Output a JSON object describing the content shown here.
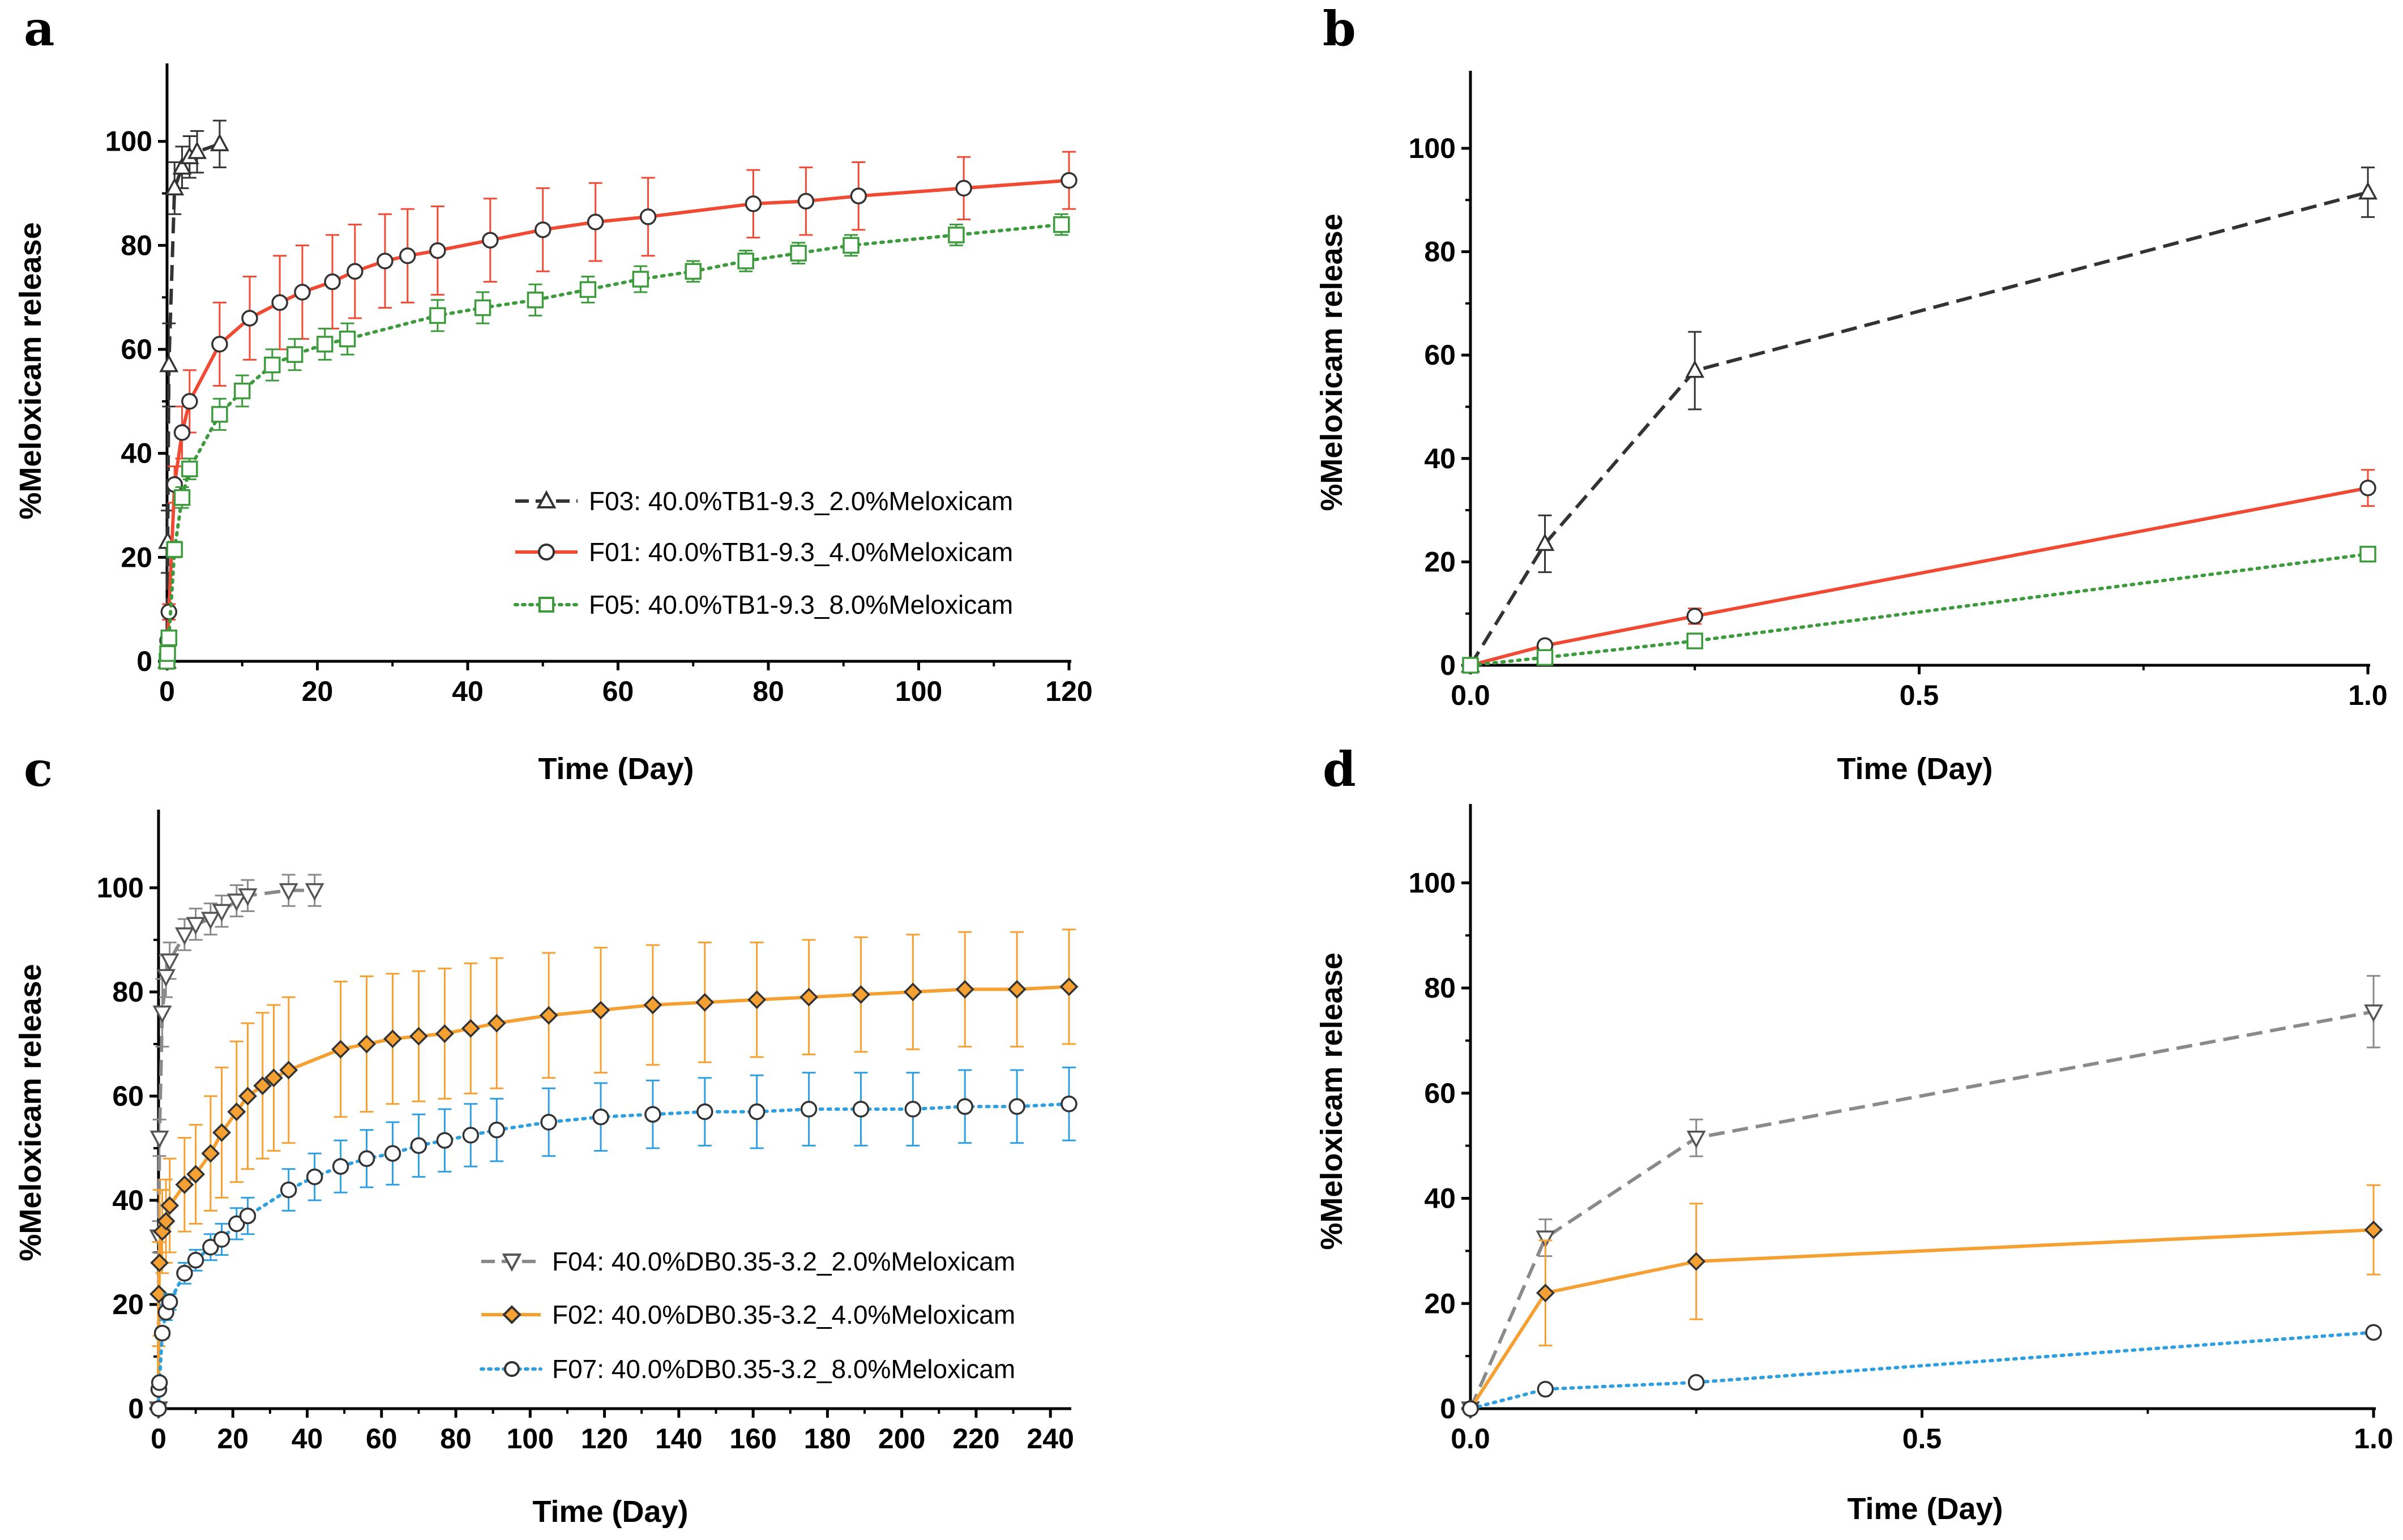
{
  "chart_data": [
    {
      "panel": "a",
      "type": "line",
      "xlabel": "Time (Day)",
      "ylabel": "%Meloxicam release",
      "xlim": [
        0,
        120
      ],
      "ylim": [
        0,
        115
      ],
      "xticks": [
        0,
        20,
        40,
        60,
        80,
        100,
        120
      ],
      "yticks": [
        0,
        20,
        40,
        60,
        80,
        100
      ],
      "grid": false,
      "legend_position": "lower-right",
      "series": [
        {
          "name": "F03: 40.0%TB1-9.3_2.0%Meloxicam",
          "color": "#333333",
          "dash": "dashed",
          "marker": "triangle-up",
          "x": [
            0,
            0.08,
            0.25,
            1,
            2,
            3,
            4,
            7
          ],
          "y": [
            0,
            23,
            57,
            91,
            95,
            97,
            98,
            99.5
          ],
          "err": [
            0,
            6,
            8,
            5,
            4,
            4,
            4,
            4.5
          ]
        },
        {
          "name": "F01: 40.0%TB1-9.3_4.0%Meloxicam",
          "color": "#f04a35",
          "dash": "solid",
          "marker": "circle",
          "x": [
            0,
            0.08,
            0.25,
            1,
            2,
            3,
            7,
            11,
            15,
            18,
            22,
            25,
            29,
            32,
            36,
            43,
            50,
            57,
            64,
            78,
            85,
            92,
            106,
            120
          ],
          "y": [
            0,
            4,
            9.5,
            34,
            44,
            50,
            61,
            66,
            69,
            71,
            73,
            75,
            77,
            78,
            79,
            81,
            83,
            84.5,
            85.5,
            88,
            88.5,
            89.5,
            91,
            92.5
          ],
          "err": [
            0,
            1,
            1.5,
            3.5,
            5,
            6,
            8,
            8,
            9,
            9,
            9,
            9,
            9,
            9,
            8.5,
            8,
            8,
            7.5,
            7.5,
            6.5,
            6.5,
            6.5,
            6,
            5.5
          ]
        },
        {
          "name": "F05: 40.0%TB1-9.3_8.0%Meloxicam",
          "color": "#3d9a3d",
          "dash": "dotted",
          "marker": "square",
          "x": [
            0,
            0.08,
            0.25,
            1,
            2,
            3,
            7,
            10,
            14,
            17,
            21,
            24,
            36,
            42,
            49,
            56,
            63,
            70,
            77,
            84,
            91,
            105,
            119
          ],
          "y": [
            0,
            1.5,
            4.5,
            21.5,
            31.5,
            37,
            47.5,
            52,
            57,
            59,
            61,
            62,
            66.5,
            68,
            69.5,
            71.5,
            73.5,
            75,
            77,
            78.5,
            80,
            82,
            84
          ],
          "err": [
            0,
            0.5,
            1,
            1.5,
            2,
            2,
            3,
            3,
            3,
            3,
            3,
            3,
            3,
            3,
            3,
            2.5,
            2.5,
            2,
            2,
            2,
            2,
            2,
            2
          ]
        }
      ]
    },
    {
      "panel": "b",
      "type": "line",
      "xlabel": "Time (Day)",
      "ylabel": "%Meloxicam release",
      "xlim": [
        0,
        1
      ],
      "ylim": [
        0,
        115
      ],
      "xticks": [
        0.0,
        0.5,
        1.0
      ],
      "xtick_labels": [
        "0.0",
        "0.5",
        "1.0"
      ],
      "yticks": [
        0,
        20,
        40,
        60,
        80,
        100
      ],
      "grid": false,
      "series": [
        {
          "name": "F03",
          "color": "#333333",
          "dash": "dashed",
          "marker": "triangle-up",
          "x": [
            0,
            0.083,
            0.25,
            1
          ],
          "y": [
            0,
            23.5,
            57,
            91.5
          ],
          "err": [
            0,
            5.5,
            7.5,
            4.8
          ]
        },
        {
          "name": "F01",
          "color": "#f04a35",
          "dash": "solid",
          "marker": "circle",
          "x": [
            0,
            0.083,
            0.25,
            1
          ],
          "y": [
            0,
            3.8,
            9.5,
            34.3
          ],
          "err": [
            0,
            0.6,
            1.5,
            3.5
          ]
        },
        {
          "name": "F05",
          "color": "#3d9a3d",
          "dash": "dotted",
          "marker": "square",
          "x": [
            0,
            0.083,
            0.25,
            1
          ],
          "y": [
            0,
            1.5,
            4.7,
            21.5
          ],
          "err": [
            0,
            0.3,
            0.6,
            0.8
          ]
        }
      ]
    },
    {
      "panel": "c",
      "type": "line",
      "xlabel": "Time (Day)",
      "ylabel": "%Meloxicam release",
      "xlim": [
        0,
        245
      ],
      "ylim": [
        0,
        115
      ],
      "xticks": [
        0,
        20,
        40,
        60,
        80,
        100,
        120,
        140,
        160,
        180,
        200,
        220,
        240
      ],
      "yticks": [
        0,
        20,
        40,
        60,
        80,
        100
      ],
      "grid": false,
      "legend_position": "lower-right",
      "series": [
        {
          "name": "F04: 40.0%DB0.35-3.2_2.0%Meloxicam",
          "color": "#8a8a8a",
          "dash": "dashed",
          "marker": "triangle-down",
          "x": [
            0,
            0.08,
            0.25,
            1,
            2,
            3,
            7,
            10,
            14,
            17,
            21,
            24,
            35,
            42
          ],
          "y": [
            0,
            33,
            52,
            76,
            83,
            86,
            91,
            93,
            94,
            95.5,
            97.5,
            98.5,
            99.5,
            99.5
          ],
          "err": [
            0,
            3,
            3.5,
            6.5,
            4,
            3.5,
            3,
            3,
            3,
            3,
            3,
            3,
            3,
            3
          ]
        },
        {
          "name": "F02: 40.0%DB0.35-3.2_4.0%Meloxicam",
          "color": "#f5a033",
          "dash": "solid",
          "marker": "diamond",
          "x": [
            0,
            0.08,
            0.25,
            1,
            2,
            3,
            7,
            10,
            14,
            17,
            21,
            24,
            28,
            31,
            35,
            49,
            56,
            63,
            70,
            77,
            84,
            91,
            105,
            119,
            133,
            147,
            161,
            175,
            189,
            203,
            217,
            231,
            245
          ],
          "y": [
            0,
            22,
            28,
            34,
            36,
            39,
            43,
            45,
            49,
            53,
            57,
            60,
            62,
            63.5,
            65,
            69,
            70,
            71,
            71.5,
            72,
            73,
            74,
            75.5,
            76.5,
            77.5,
            78,
            78.5,
            79,
            79.5,
            80,
            80.5,
            80.5,
            81
          ],
          "err": [
            0,
            10,
            14,
            8,
            8,
            9,
            9,
            9.5,
            11,
            12.5,
            13.5,
            14,
            14,
            14,
            14,
            13,
            13,
            12.5,
            12.5,
            12.5,
            12.5,
            12.5,
            12,
            12,
            11.5,
            11.5,
            11,
            11,
            11,
            11,
            11,
            11,
            11
          ]
        },
        {
          "name": "F07: 40.0%DB0.35-3.2_8.0%Meloxicam",
          "color": "#2f9fe0",
          "dash": "dotted",
          "marker": "circle",
          "x": [
            0,
            0.08,
            0.25,
            1,
            2,
            3,
            7,
            10,
            14,
            17,
            21,
            24,
            35,
            42,
            49,
            56,
            63,
            70,
            77,
            84,
            91,
            105,
            119,
            133,
            147,
            161,
            175,
            189,
            203,
            217,
            231,
            245
          ],
          "y": [
            0,
            3.7,
            5,
            14.5,
            18.5,
            20.5,
            26,
            28.5,
            31,
            32.5,
            35.5,
            37,
            42,
            44.5,
            46.5,
            48,
            49,
            50.5,
            51.5,
            52.5,
            53.5,
            55,
            56,
            56.5,
            57,
            57,
            57.5,
            57.5,
            57.5,
            58,
            58,
            58.5
          ],
          "err": [
            0,
            0.5,
            0.8,
            1,
            1.5,
            1.5,
            2,
            2,
            2.5,
            3,
            3,
            3.5,
            4,
            4.5,
            5,
            5.5,
            6,
            6,
            6,
            6,
            6,
            6.5,
            6.5,
            6.5,
            6.5,
            7,
            7,
            7,
            7,
            7,
            7,
            7
          ]
        }
      ]
    },
    {
      "panel": "d",
      "type": "line",
      "xlabel": "Time (Day)",
      "ylabel": "%Meloxicam release",
      "xlim": [
        0,
        1
      ],
      "ylim": [
        0,
        115
      ],
      "xticks": [
        0.0,
        0.5,
        1.0
      ],
      "xtick_labels": [
        "0.0",
        "0.5",
        "1.0"
      ],
      "yticks": [
        0,
        20,
        40,
        60,
        80,
        100
      ],
      "grid": false,
      "series": [
        {
          "name": "F04",
          "color": "#8a8a8a",
          "dash": "dashed",
          "marker": "triangle-down",
          "x": [
            0,
            0.083,
            0.25,
            1
          ],
          "y": [
            0,
            32.5,
            51.5,
            75.5
          ],
          "err": [
            0,
            3.5,
            3.5,
            6.8
          ]
        },
        {
          "name": "F02",
          "color": "#f5a033",
          "dash": "solid",
          "marker": "diamond",
          "x": [
            0,
            0.083,
            0.25,
            1
          ],
          "y": [
            0,
            22,
            28,
            34
          ],
          "err": [
            0,
            10,
            11,
            8.5
          ]
        },
        {
          "name": "F07",
          "color": "#2f9fe0",
          "dash": "dotted",
          "marker": "circle",
          "x": [
            0,
            0.083,
            0.25,
            1
          ],
          "y": [
            0,
            3.7,
            5,
            14.5
          ],
          "err": [
            0,
            0.4,
            0.5,
            0.6
          ]
        }
      ]
    }
  ]
}
